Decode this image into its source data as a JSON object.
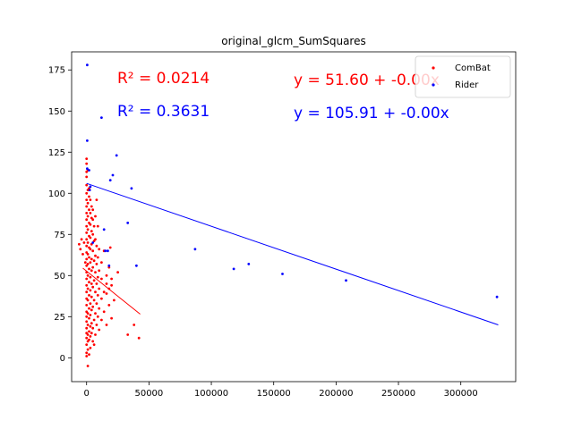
{
  "chart_data": {
    "type": "scatter",
    "title": "original_glcm_SumSquares",
    "xlabel": "",
    "ylabel": "",
    "xlim": [
      -12000,
      344000
    ],
    "ylim": [
      -14.5,
      186
    ],
    "xticks": [
      0,
      50000,
      100000,
      150000,
      200000,
      250000,
      300000
    ],
    "xtick_labels": [
      "0",
      "50000",
      "100000",
      "150000",
      "200000",
      "250000",
      "300000"
    ],
    "yticks": [
      0,
      25,
      50,
      75,
      100,
      125,
      150,
      175
    ],
    "ytick_labels": [
      "0",
      "25",
      "50",
      "75",
      "100",
      "125",
      "150",
      "175"
    ],
    "grid": false,
    "legend_position": "top-right",
    "series": [
      {
        "name": "ComBat",
        "color": "#ff0000",
        "points": [
          [
            -6000,
            69
          ],
          [
            -5000,
            66
          ],
          [
            -4000,
            72
          ],
          [
            -3000,
            63
          ],
          [
            -2000,
            70
          ],
          [
            -1000,
            58
          ],
          [
            0,
            1
          ],
          [
            0,
            3
          ],
          [
            0,
            8
          ],
          [
            0,
            12
          ],
          [
            0,
            15
          ],
          [
            0,
            18
          ],
          [
            0,
            22
          ],
          [
            0,
            25
          ],
          [
            0,
            28
          ],
          [
            0,
            32
          ],
          [
            0,
            36
          ],
          [
            0,
            40
          ],
          [
            0,
            44
          ],
          [
            0,
            48
          ],
          [
            0,
            52
          ],
          [
            0,
            56
          ],
          [
            0,
            60
          ],
          [
            0,
            64
          ],
          [
            0,
            68
          ],
          [
            0,
            72
          ],
          [
            0,
            76
          ],
          [
            0,
            80
          ],
          [
            0,
            84
          ],
          [
            0,
            88
          ],
          [
            0,
            92
          ],
          [
            0,
            96
          ],
          [
            0,
            100
          ],
          [
            0,
            105
          ],
          [
            0,
            110
          ],
          [
            0,
            113
          ],
          [
            0,
            118
          ],
          [
            0,
            121
          ],
          [
            1000,
            -5
          ],
          [
            1000,
            5
          ],
          [
            1000,
            10
          ],
          [
            1000,
            14
          ],
          [
            1000,
            20
          ],
          [
            1000,
            27
          ],
          [
            1000,
            35
          ],
          [
            1000,
            42
          ],
          [
            1000,
            50
          ],
          [
            1000,
            57
          ],
          [
            1000,
            63
          ],
          [
            1000,
            70
          ],
          [
            1000,
            78
          ],
          [
            1000,
            86
          ],
          [
            1000,
            94
          ],
          [
            1000,
            102
          ],
          [
            1000,
            114
          ],
          [
            2000,
            2
          ],
          [
            2000,
            11
          ],
          [
            2000,
            16
          ],
          [
            2000,
            24
          ],
          [
            2000,
            30
          ],
          [
            2000,
            38
          ],
          [
            2000,
            46
          ],
          [
            2000,
            54
          ],
          [
            2000,
            61
          ],
          [
            2000,
            67
          ],
          [
            2000,
            74
          ],
          [
            2000,
            82
          ],
          [
            2000,
            90
          ],
          [
            2000,
            98
          ],
          [
            2000,
            103
          ],
          [
            3000,
            6
          ],
          [
            3000,
            13
          ],
          [
            3000,
            19
          ],
          [
            3000,
            26
          ],
          [
            3000,
            33
          ],
          [
            3000,
            41
          ],
          [
            3000,
            49
          ],
          [
            3000,
            58
          ],
          [
            3000,
            66
          ],
          [
            3000,
            73
          ],
          [
            3000,
            81
          ],
          [
            3000,
            88
          ],
          [
            3000,
            96
          ],
          [
            4000,
            15
          ],
          [
            4000,
            21
          ],
          [
            4000,
            29
          ],
          [
            4000,
            37
          ],
          [
            4000,
            45
          ],
          [
            4000,
            53
          ],
          [
            4000,
            60
          ],
          [
            4000,
            69
          ],
          [
            4000,
            77
          ],
          [
            4000,
            85
          ],
          [
            4000,
            92
          ],
          [
            5000,
            10
          ],
          [
            5000,
            18
          ],
          [
            5000,
            31
          ],
          [
            5000,
            43
          ],
          [
            5000,
            55
          ],
          [
            5000,
            65
          ],
          [
            5000,
            75
          ],
          [
            5000,
            84
          ],
          [
            5000,
            90
          ],
          [
            6000,
            8
          ],
          [
            6000,
            23
          ],
          [
            6000,
            35
          ],
          [
            6000,
            47
          ],
          [
            6000,
            59
          ],
          [
            6000,
            71
          ],
          [
            6000,
            80
          ],
          [
            7000,
            14
          ],
          [
            7000,
            27
          ],
          [
            7000,
            40
          ],
          [
            7000,
            52
          ],
          [
            7000,
            62
          ],
          [
            7000,
            72
          ],
          [
            7000,
            86
          ],
          [
            8000,
            20
          ],
          [
            8000,
            33
          ],
          [
            8000,
            45
          ],
          [
            8000,
            57
          ],
          [
            8000,
            68
          ],
          [
            8000,
            96
          ],
          [
            9000,
            25
          ],
          [
            9000,
            38
          ],
          [
            9000,
            49
          ],
          [
            9000,
            61
          ],
          [
            9000,
            80
          ],
          [
            10000,
            17
          ],
          [
            10000,
            30
          ],
          [
            10000,
            42
          ],
          [
            10000,
            53
          ],
          [
            10000,
            66
          ],
          [
            12000,
            23
          ],
          [
            12000,
            36
          ],
          [
            12000,
            48
          ],
          [
            12000,
            58
          ],
          [
            14000,
            28
          ],
          [
            14000,
            40
          ],
          [
            14000,
            65
          ],
          [
            16000,
            20
          ],
          [
            16000,
            39
          ],
          [
            16000,
            45
          ],
          [
            16000,
            50
          ],
          [
            18000,
            32
          ],
          [
            18000,
            42
          ],
          [
            18000,
            55
          ],
          [
            19000,
            67
          ],
          [
            20000,
            24
          ],
          [
            20000,
            44
          ],
          [
            20000,
            48
          ],
          [
            22000,
            35
          ],
          [
            25000,
            52
          ],
          [
            33000,
            14
          ],
          [
            38000,
            20
          ],
          [
            42000,
            12
          ]
        ],
        "fit_line": {
          "x": [
            -3000,
            43000
          ],
          "y": [
            54.5,
            26.5
          ]
        }
      },
      {
        "name": "Rider",
        "color": "#0000ff",
        "points": [
          [
            500,
            178
          ],
          [
            500,
            132
          ],
          [
            500,
            115
          ],
          [
            2000,
            114
          ],
          [
            3000,
            104
          ],
          [
            2500,
            102
          ],
          [
            5000,
            70
          ],
          [
            12000,
            146
          ],
          [
            14000,
            78
          ],
          [
            15000,
            65
          ],
          [
            17000,
            65
          ],
          [
            18000,
            56
          ],
          [
            19000,
            108
          ],
          [
            21000,
            111
          ],
          [
            24000,
            123
          ],
          [
            33000,
            82
          ],
          [
            36000,
            103
          ],
          [
            40000,
            56
          ],
          [
            87000,
            66
          ],
          [
            118000,
            54
          ],
          [
            130000,
            57
          ],
          [
            157000,
            51
          ],
          [
            208000,
            47
          ],
          [
            329000,
            37
          ]
        ],
        "fit_line": {
          "x": [
            0,
            330000
          ],
          "y": [
            106,
            20
          ]
        }
      }
    ],
    "annotations": [
      {
        "text": "R² = 0.0214",
        "color": "#ff0000"
      },
      {
        "text": "R² = 0.3631",
        "color": "#0000ff"
      },
      {
        "text": "y = 51.60 + -0.00x",
        "color": "#ff0000"
      },
      {
        "text": "y = 105.91 + -0.00x",
        "color": "#0000ff"
      }
    ]
  }
}
